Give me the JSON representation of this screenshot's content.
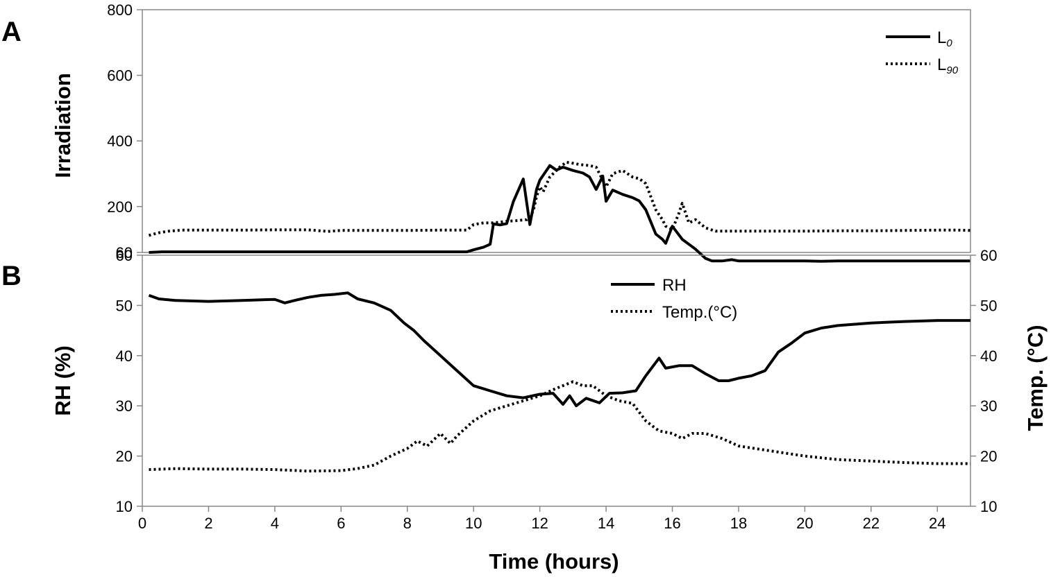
{
  "chart_data": [
    {
      "panel": "A",
      "type": "line",
      "ylabel": "Irradiation",
      "ylim": [
        60,
        800
      ],
      "yticks": [
        60,
        200,
        400,
        600,
        800
      ],
      "xlim": [
        0,
        25
      ],
      "legend_position": "top-right",
      "series": [
        {
          "name": "L0",
          "legend_main": "L",
          "legend_sub": "0",
          "style": "solid",
          "x": [
            0.2,
            0.6,
            1,
            2,
            4,
            6,
            8,
            9.8,
            10,
            10.3,
            10.5,
            10.6,
            10.8,
            11,
            11.2,
            11.5,
            11.7,
            11.9,
            12,
            12.3,
            12.5,
            12.7,
            13,
            13.3,
            13.5,
            13.7,
            13.9,
            14,
            14.2,
            14.5,
            14.8,
            15,
            15.2,
            15.5,
            15.7,
            15.8,
            16,
            16.3,
            16.5,
            16.7,
            17,
            17.2,
            17.5,
            17.8,
            18,
            19,
            20,
            20.5,
            21,
            22,
            23,
            24,
            25
          ],
          "y": [
            60,
            62,
            62,
            62,
            62,
            62,
            62,
            62,
            68,
            76,
            85,
            147,
            144,
            148,
            215,
            284,
            145,
            252,
            280,
            325,
            311,
            320,
            310,
            302,
            290,
            252,
            293,
            216,
            250,
            237,
            227,
            217,
            190,
            116,
            100,
            88,
            140,
            100,
            85,
            70,
            42,
            34,
            34,
            38,
            34,
            34,
            34,
            33,
            34,
            34,
            34,
            34,
            34
          ]
        },
        {
          "name": "L90",
          "legend_main": "L",
          "legend_sub": "90",
          "style": "dotted",
          "x": [
            0.2,
            0.5,
            0.8,
            1.2,
            2,
            3,
            4,
            5,
            5.6,
            6,
            7,
            8,
            9,
            9.8,
            10,
            10.3,
            10.6,
            11,
            11.3,
            11.6,
            11.8,
            11.9,
            12,
            12.1,
            12.3,
            12.6,
            12.8,
            13,
            13.2,
            13.5,
            13.7,
            14,
            14.2,
            14.5,
            14.8,
            15,
            15.2,
            15.5,
            15.7,
            15.8,
            16,
            16.2,
            16.3,
            16.5,
            16.7,
            17,
            17.3,
            17.6,
            18,
            19,
            20,
            21,
            22,
            23,
            24,
            24.6,
            25
          ],
          "y": [
            112,
            120,
            125,
            128,
            128,
            128,
            129,
            129,
            124,
            127,
            127,
            127,
            128,
            128,
            145,
            150,
            150,
            155,
            157,
            160,
            185,
            230,
            260,
            245,
            290,
            320,
            335,
            332,
            328,
            325,
            320,
            260,
            300,
            310,
            290,
            285,
            270,
            190,
            160,
            140,
            130,
            180,
            210,
            150,
            160,
            135,
            125,
            125,
            125,
            125,
            125,
            126,
            126,
            127,
            128,
            128,
            127
          ]
        }
      ]
    },
    {
      "panel": "B",
      "type": "line",
      "ylabel": "RH (%)",
      "ylabel_right": "Temp. (°C)",
      "ylim": [
        10,
        60
      ],
      "yticks": [
        10,
        20,
        30,
        40,
        50,
        60
      ],
      "xlim": [
        0,
        25
      ],
      "xlabel": "Time (hours)",
      "xticks": [
        0,
        2,
        4,
        6,
        8,
        10,
        12,
        14,
        16,
        18,
        20,
        22,
        24
      ],
      "legend_position": "top-center",
      "series": [
        {
          "name": "RH",
          "style": "solid",
          "x": [
            0.2,
            0.5,
            1,
            2,
            3,
            4,
            4.3,
            4.6,
            5,
            5.4,
            5.8,
            6.2,
            6.5,
            7,
            7.5,
            7.9,
            8.2,
            8.5,
            9,
            9.5,
            10,
            10.5,
            11,
            11.5,
            12,
            12.4,
            12.7,
            12.9,
            13.1,
            13.4,
            13.8,
            14.1,
            14.5,
            14.9,
            15.2,
            15.6,
            15.8,
            16.2,
            16.6,
            17,
            17.4,
            17.7,
            18,
            18.4,
            18.8,
            19.2,
            19.6,
            20,
            20.5,
            21,
            22,
            23,
            24,
            25
          ],
          "y": [
            52,
            51.3,
            51,
            50.8,
            51,
            51.2,
            50.5,
            51,
            51.6,
            52,
            52.2,
            52.5,
            51.3,
            50.5,
            49,
            46.5,
            45,
            43,
            40,
            37,
            34,
            33,
            32,
            31.6,
            32.3,
            32.5,
            30.3,
            32,
            30,
            31.5,
            30.6,
            32.5,
            32.6,
            33,
            36,
            39.5,
            37.5,
            38,
            38,
            36.4,
            35,
            35,
            35.5,
            36,
            37,
            40.7,
            42.5,
            44.5,
            45.5,
            46,
            46.5,
            46.8,
            47,
            47
          ]
        },
        {
          "name": "Temp.(°C)",
          "style": "dotted",
          "x": [
            0.2,
            1,
            2,
            3,
            4,
            5,
            6,
            6.5,
            7,
            7.5,
            8,
            8.3,
            8.6,
            9,
            9.3,
            9.5,
            10,
            10.5,
            11,
            11.5,
            12,
            12.5,
            13,
            13.3,
            13.6,
            14,
            14.4,
            14.8,
            15.2,
            15.6,
            16,
            16.3,
            16.6,
            17,
            17.5,
            18,
            19,
            20,
            21,
            22,
            23,
            24,
            25
          ],
          "y": [
            17.3,
            17.5,
            17.4,
            17.4,
            17.3,
            17.0,
            17.1,
            17.5,
            18.2,
            20,
            21.5,
            23,
            22,
            24.5,
            22.5,
            24,
            27,
            29,
            30,
            31,
            32,
            33.5,
            34.8,
            34,
            34,
            32,
            31,
            30.5,
            27,
            25,
            24.5,
            23.5,
            24.5,
            24.5,
            23.5,
            22,
            21,
            20,
            19.3,
            19,
            18.7,
            18.5,
            18.5
          ]
        }
      ]
    }
  ]
}
